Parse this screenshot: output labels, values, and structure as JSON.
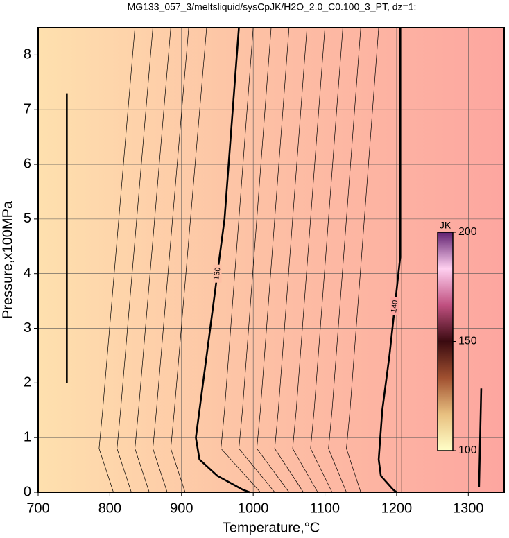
{
  "chart_data": {
    "type": "contour",
    "title": "MG133_057_3/meltsliquid/sysCpJK/H2O_2.0_C0.100_3_PT, dz=1:",
    "x_label": "Temperature,°C",
    "y_label": "Pressure,x100MPa",
    "xlim": [
      700,
      1350
    ],
    "ylim": [
      0,
      8.5
    ],
    "xticks": [
      700,
      800,
      900,
      1000,
      1100,
      1200,
      1300
    ],
    "yticks": [
      0,
      1,
      2,
      3,
      4,
      5,
      6,
      7,
      8
    ],
    "grid": true,
    "background_colors": [
      "#fee0ae",
      "#fdbfa4",
      "#fda6a0"
    ],
    "contours": [
      {
        "name": "130",
        "bold": true,
        "x": [
          980,
          960,
          940,
          925,
          920,
          925,
          950,
          985,
          995
        ],
        "y": [
          8.5,
          5.0,
          3.0,
          1.5,
          1.0,
          0.6,
          0.3,
          0.05,
          0
        ]
      },
      {
        "name": "140",
        "bold": true,
        "x": [
          1205,
          1205,
          1190,
          1180,
          1175,
          1178,
          1195,
          1200
        ],
        "y": [
          8.5,
          4.3,
          2.5,
          1.5,
          0.6,
          0.3,
          0.05,
          0
        ]
      },
      {
        "bold": true,
        "x": [
          740,
          740
        ],
        "y": [
          2,
          7.3
        ]
      },
      {
        "bold": true,
        "x": [
          1315,
          1318
        ],
        "y": [
          0.1,
          1.9
        ]
      },
      {
        "bold": false,
        "x": [
          1207,
          1207
        ],
        "y": [
          0,
          8.5
        ]
      },
      {
        "bold": false,
        "x": [
          835,
          790,
          785,
          805
        ],
        "y": [
          8.5,
          1.5,
          0.8,
          0
        ]
      },
      {
        "bold": false,
        "x": [
          860,
          815,
          810,
          830
        ],
        "y": [
          8.5,
          1.5,
          0.8,
          0
        ]
      },
      {
        "bold": false,
        "x": [
          885,
          840,
          835,
          855
        ],
        "y": [
          8.5,
          1.5,
          0.8,
          0
        ]
      },
      {
        "bold": false,
        "x": [
          910,
          865,
          860,
          880
        ],
        "y": [
          8.5,
          1.5,
          0.8,
          0
        ]
      },
      {
        "bold": false,
        "x": [
          935,
          890,
          885,
          905
        ],
        "y": [
          8.5,
          1.5,
          0.8,
          0
        ]
      },
      {
        "bold": false,
        "x": [
          1000,
          960,
          955,
          1010
        ],
        "y": [
          8.5,
          1.5,
          0.8,
          0
        ]
      },
      {
        "bold": false,
        "x": [
          1025,
          985,
          980,
          1030
        ],
        "y": [
          8.5,
          1.5,
          0.8,
          0
        ]
      },
      {
        "bold": false,
        "x": [
          1050,
          1010,
          1005,
          1050
        ],
        "y": [
          8.5,
          1.5,
          0.8,
          0
        ]
      },
      {
        "bold": false,
        "x": [
          1075,
          1035,
          1030,
          1070
        ],
        "y": [
          8.5,
          1.5,
          0.8,
          0
        ]
      },
      {
        "bold": false,
        "x": [
          1100,
          1060,
          1055,
          1090
        ],
        "y": [
          8.5,
          1.5,
          0.8,
          0
        ]
      },
      {
        "bold": false,
        "x": [
          1125,
          1085,
          1080,
          1110
        ],
        "y": [
          8.5,
          1.5,
          0.8,
          0
        ]
      },
      {
        "bold": false,
        "x": [
          1150,
          1110,
          1105,
          1130
        ],
        "y": [
          8.5,
          1.5,
          0.8,
          0
        ]
      },
      {
        "bold": false,
        "x": [
          1175,
          1135,
          1130,
          1150
        ],
        "y": [
          8.5,
          1.5,
          0.8,
          0
        ]
      }
    ],
    "colorbar": {
      "label": "JK",
      "lim": [
        100,
        200
      ],
      "ticks": [
        100,
        150,
        200
      ],
      "colors": [
        "#ffffc8",
        "#e8c080",
        "#a05030",
        "#3a0a10",
        "#c05080",
        "#ffd0f0",
        "#602070"
      ]
    }
  }
}
